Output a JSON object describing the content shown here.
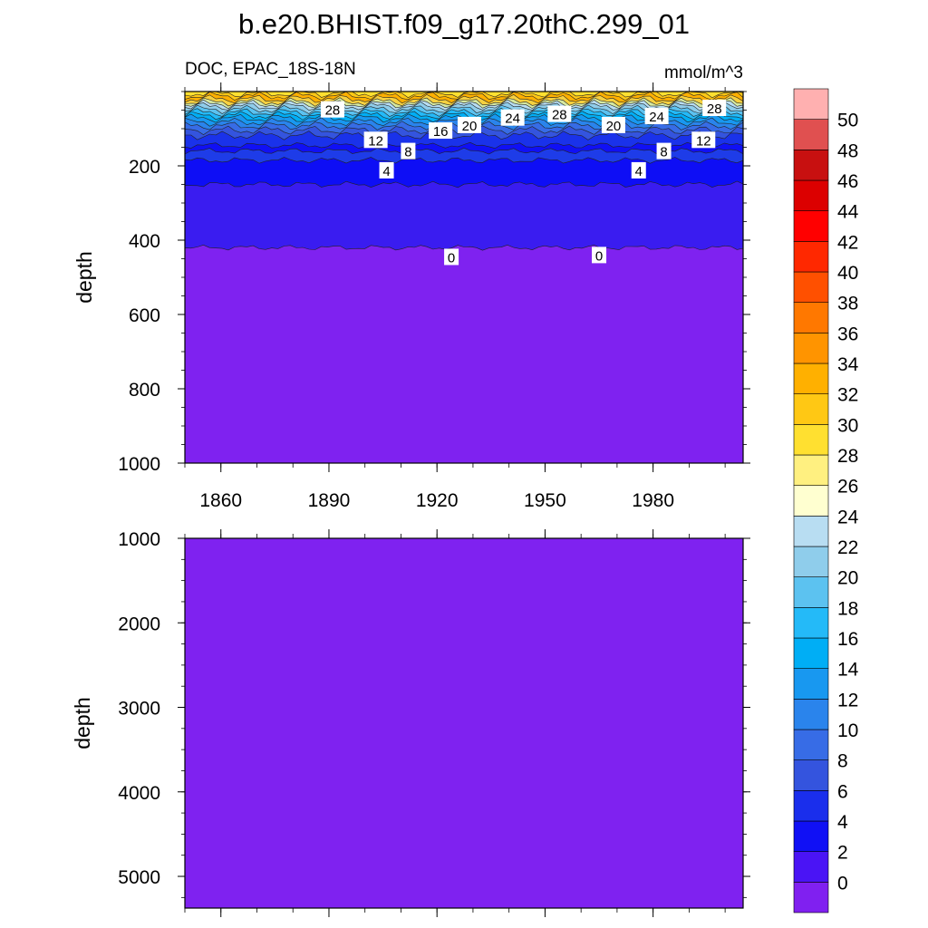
{
  "title": "b.e20.BHIST.f09_g17.20thC.299_01",
  "chart_data": {
    "type": "heatmap",
    "variable_label": "DOC, EPAC_18S-18N",
    "units_label": "mmol/m^3",
    "x": {
      "label": "",
      "range": [
        1850,
        2005
      ],
      "ticks": [
        1860,
        1890,
        1920,
        1950,
        1980
      ],
      "tick_labels": [
        "1860",
        "1890",
        "1920",
        "1950",
        "1980"
      ]
    },
    "panels": [
      {
        "name": "upper",
        "ylabel": "depth",
        "yrange": [
          0,
          1000
        ],
        "yticks": [
          200,
          400,
          600,
          800,
          1000
        ],
        "ytick_labels": [
          "200",
          "400",
          "600",
          "800",
          "1000"
        ],
        "layers": [
          {
            "from": 0,
            "to": 5,
            "color": "#FFE030"
          },
          {
            "from": 5,
            "to": 12,
            "color": "#FFC814"
          },
          {
            "from": 12,
            "to": 20,
            "color": "#FFB000"
          },
          {
            "from": 20,
            "to": 28,
            "color": "#F5D040"
          },
          {
            "from": 28,
            "to": 34,
            "color": "#D6E8A0"
          },
          {
            "from": 34,
            "to": 40,
            "color": "#B8DDF2"
          },
          {
            "from": 40,
            "to": 48,
            "color": "#8FCDEB"
          },
          {
            "from": 48,
            "to": 56,
            "color": "#5CC2F0"
          },
          {
            "from": 56,
            "to": 64,
            "color": "#24BAF8"
          },
          {
            "from": 64,
            "to": 72,
            "color": "#00AEF5"
          },
          {
            "from": 72,
            "to": 82,
            "color": "#1898F0"
          },
          {
            "from": 82,
            "to": 92,
            "color": "#2A84EC"
          },
          {
            "from": 92,
            "to": 104,
            "color": "#376CE6"
          },
          {
            "from": 104,
            "to": 118,
            "color": "#3454DE"
          },
          {
            "from": 118,
            "to": 145,
            "color": "#1A32EA"
          },
          {
            "from": 145,
            "to": 160,
            "color": "#1010F5"
          },
          {
            "from": 160,
            "to": 185,
            "color": "#1E3CE8"
          },
          {
            "from": 185,
            "to": 250,
            "color": "#0E0EF5"
          },
          {
            "from": 250,
            "to": 420,
            "color": "#3A1CF0"
          },
          {
            "from": 420,
            "to": 1000,
            "color": "#7F22F0"
          }
        ],
        "contour_labels": [
          {
            "text": "28",
            "x": 1891,
            "y": 48
          },
          {
            "text": "12",
            "x": 1903,
            "y": 130
          },
          {
            "text": "16",
            "x": 1921,
            "y": 105
          },
          {
            "text": "20",
            "x": 1929,
            "y": 90
          },
          {
            "text": "24",
            "x": 1941,
            "y": 70
          },
          {
            "text": "28",
            "x": 1954,
            "y": 60
          },
          {
            "text": "20",
            "x": 1969,
            "y": 90
          },
          {
            "text": "24",
            "x": 1981,
            "y": 66
          },
          {
            "text": "28",
            "x": 1997,
            "y": 44
          },
          {
            "text": "8",
            "x": 1912,
            "y": 160
          },
          {
            "text": "12",
            "x": 1994,
            "y": 130
          },
          {
            "text": "8",
            "x": 1983,
            "y": 160
          },
          {
            "text": "4",
            "x": 1906,
            "y": 212
          },
          {
            "text": "4",
            "x": 1976,
            "y": 212
          },
          {
            "text": "0",
            "x": 1924,
            "y": 445
          },
          {
            "text": "0",
            "x": 1965,
            "y": 440
          }
        ]
      },
      {
        "name": "lower",
        "ylabel": "depth",
        "yrange": [
          1000,
          5375
        ],
        "yticks": [
          1000,
          2000,
          3000,
          4000,
          5000
        ],
        "ytick_labels": [
          "1000",
          "2000",
          "3000",
          "4000",
          "5000"
        ],
        "fill_color": "#7F22F0"
      }
    ],
    "colorbar": {
      "levels": [
        0,
        2,
        4,
        6,
        8,
        10,
        12,
        14,
        16,
        18,
        20,
        22,
        24,
        26,
        28,
        30,
        32,
        34,
        36,
        38,
        40,
        42,
        44,
        46,
        48,
        50
      ],
      "labels": [
        "0",
        "2",
        "4",
        "6",
        "8",
        "10",
        "12",
        "14",
        "16",
        "18",
        "20",
        "22",
        "24",
        "26",
        "28",
        "30",
        "32",
        "34",
        "36",
        "38",
        "40",
        "42",
        "44",
        "46",
        "48",
        "50"
      ],
      "colors": [
        "#8020F0",
        "#4A14F5",
        "#1010F5",
        "#1A2EEC",
        "#3454DE",
        "#376CE6",
        "#2A84EC",
        "#1898F0",
        "#00AEF5",
        "#24BAF8",
        "#5CC2F0",
        "#8FCDEB",
        "#B8DDF2",
        "#FFFFD0",
        "#FFF080",
        "#FFE030",
        "#FFC814",
        "#FFB000",
        "#FF9400",
        "#FF7800",
        "#FF5000",
        "#FF2800",
        "#FF0000",
        "#DC0000",
        "#C81010",
        "#E05050",
        "#FFB0B0"
      ]
    }
  }
}
